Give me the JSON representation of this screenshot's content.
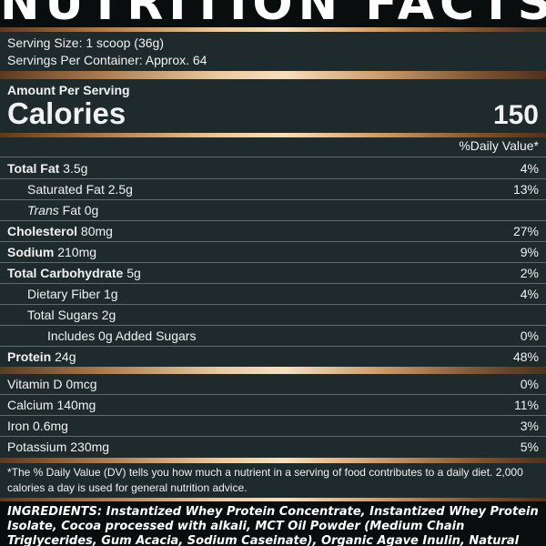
{
  "header": {
    "title": "NUTRITION FACTS"
  },
  "serving": {
    "size": "Serving Size: 1 scoop (36g)",
    "per_container": "Servings Per Container: Approx. 64"
  },
  "calories": {
    "amount_label": "Amount Per Serving",
    "label": "Calories",
    "value": "150",
    "dv_header": "%Daily Value*"
  },
  "nutrients": {
    "total_fat": {
      "label": "Total Fat",
      "amount": " 3.5g",
      "dv": "4%"
    },
    "saturated_fat": {
      "label": "Saturated Fat 2.5g",
      "dv": "13%"
    },
    "trans_fat": {
      "label": "Trans",
      "amount": " Fat 0g"
    },
    "cholesterol": {
      "label": "Cholesterol",
      "amount": " 80mg",
      "dv": "27%"
    },
    "sodium": {
      "label": "Sodium",
      "amount": " 210mg",
      "dv": "9%"
    },
    "total_carb": {
      "label": "Total Carbohydrate",
      "amount": " 5g",
      "dv": "2%"
    },
    "fiber": {
      "label": "Dietary Fiber 1g",
      "dv": "4%"
    },
    "sugars": {
      "label": "Total Sugars 2g"
    },
    "added_sugars": {
      "label": "Includes 0g Added Sugars",
      "dv": "0%"
    },
    "protein": {
      "label": "Protein",
      "amount": " 24g",
      "dv": "48%"
    }
  },
  "vitamins": {
    "vitamin_d": {
      "label": "Vitamin D 0mcg",
      "dv": "0%"
    },
    "calcium": {
      "label": "Calcium 140mg",
      "dv": "11%"
    },
    "iron": {
      "label": "Iron 0.6mg",
      "dv": "3%"
    },
    "potassium": {
      "label": "Potassium 230mg",
      "dv": "5%"
    }
  },
  "footnote": "*The % Daily Value (DV) tells you how much a nutrient in a serving of food contributes to a daily diet. 2,000 calories a day is used for general nutrition advice.",
  "ingredients": "INGREDIENTS: Instantized Whey Protein Concentrate, Instantized Whey Protein Isolate, Cocoa processed with alkali, MCT Oil Powder (Medium Chain Triglycerides, Gum Acacia, Sodium Caseinate), Organic Agave Inulin, Natural and Artificial Flavors, Pink Himalayan Salt, Xanthan"
}
